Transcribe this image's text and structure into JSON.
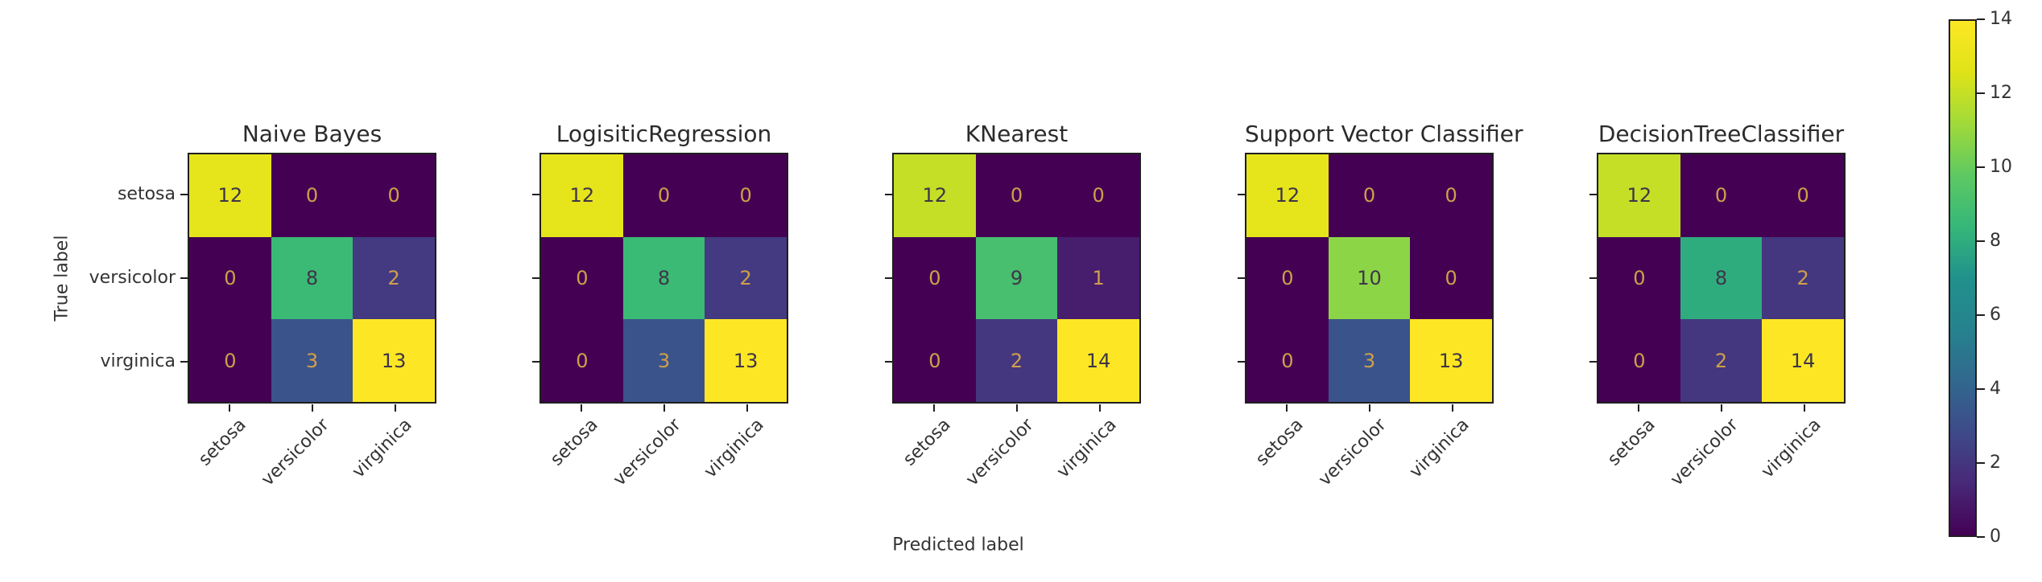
{
  "figure": {
    "background": "#ffffff"
  },
  "chart_data": {
    "type": "heatmap",
    "description": "Confusion matrices for five classifiers on the iris dataset",
    "shared": {
      "x_ticklabels": [
        "setosa",
        "versicolor",
        "virginica"
      ],
      "y_ticklabels": [
        "setosa",
        "versicolor",
        "virginica"
      ],
      "xlabel": "Predicted label",
      "ylabel": "True label",
      "grid": false,
      "colorbar": {
        "ticks": [
          0,
          2,
          4,
          6,
          8,
          10,
          12,
          14
        ],
        "vmin": 0,
        "vmax": 14,
        "position": "right"
      }
    },
    "matrices": [
      {
        "title": "Naive Bayes",
        "values": [
          [
            12,
            0,
            0
          ],
          [
            0,
            8,
            2
          ],
          [
            0,
            3,
            13
          ]
        ]
      },
      {
        "title": "LogisiticRegression",
        "values": [
          [
            12,
            0,
            0
          ],
          [
            0,
            8,
            2
          ],
          [
            0,
            3,
            13
          ]
        ]
      },
      {
        "title": "KNearest",
        "values": [
          [
            12,
            0,
            0
          ],
          [
            0,
            9,
            1
          ],
          [
            0,
            2,
            14
          ]
        ]
      },
      {
        "title": "Support Vector Classifier",
        "values": [
          [
            12,
            0,
            0
          ],
          [
            0,
            10,
            0
          ],
          [
            0,
            3,
            13
          ]
        ]
      },
      {
        "title": "DecisionTreeClassifier",
        "values": [
          [
            12,
            0,
            0
          ],
          [
            0,
            8,
            2
          ],
          [
            0,
            2,
            14
          ]
        ]
      }
    ],
    "colormap": "viridis",
    "colormap_stops": [
      "#440154",
      "#482878",
      "#3e4a89",
      "#31688e",
      "#26828e",
      "#21918c",
      "#35b779",
      "#5ec962",
      "#a0da39",
      "#dfe318",
      "#fde725"
    ]
  },
  "colors": {
    "cell_text_low": "#cfa049",
    "cell_text_high": "#3d3548",
    "title_text": "#2b2b2b",
    "tick_text": "#333333",
    "spine": "#1f1f1f"
  }
}
